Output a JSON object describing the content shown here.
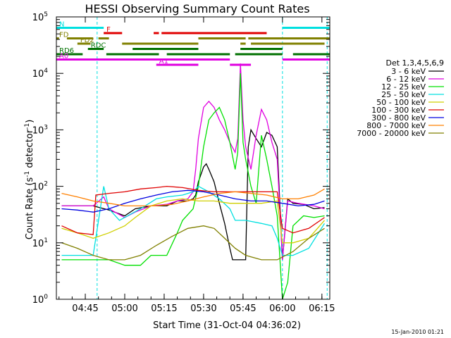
{
  "chart_data": {
    "type": "line",
    "title": "HESSI Observing Summary Count Rates",
    "xlabel": "Start Time (31-Oct-04 04:36:02)",
    "ylabel": "Count Rate (s⁻¹ detector⁻¹)",
    "ylabel_parts": [
      "Count Rate (s",
      "-1",
      " detector",
      "-1",
      ")"
    ],
    "xlim": [
      -2,
      102
    ],
    "ylim": [
      1,
      100000
    ],
    "yscale": "log",
    "x_unit": "minutes after 04:36:02",
    "x_ticks": [
      {
        "x": 9,
        "label": "04:45"
      },
      {
        "x": 24,
        "label": "05:00"
      },
      {
        "x": 39,
        "label": "05:15"
      },
      {
        "x": 54,
        "label": "05:30"
      },
      {
        "x": 69,
        "label": "05:45"
      },
      {
        "x": 84,
        "label": "06:00"
      },
      {
        "x": 99,
        "label": "06:15"
      }
    ],
    "y_ticks": [
      {
        "v": 1,
        "base": "10",
        "exp": "0"
      },
      {
        "v": 10,
        "base": "10",
        "exp": "1"
      },
      {
        "v": 100,
        "base": "10",
        "exp": "2"
      },
      {
        "v": 1000,
        "base": "10",
        "exp": "3"
      },
      {
        "v": 10000,
        "base": "10",
        "exp": "4"
      },
      {
        "v": 100000,
        "base": "10",
        "exp": "5"
      }
    ],
    "legend_title": "Det 1,3,4,5,6,9",
    "legend_position": "right",
    "series": [
      {
        "name": "3 - 6 keV",
        "color": "#000000",
        "points": [
          [
            0,
            45
          ],
          [
            12,
            45
          ],
          [
            18,
            38
          ],
          [
            24,
            30
          ],
          [
            28,
            40
          ],
          [
            34,
            45
          ],
          [
            40,
            45
          ],
          [
            44,
            55
          ],
          [
            48,
            55
          ],
          [
            50,
            60
          ],
          [
            51,
            70
          ],
          [
            52,
            120
          ],
          [
            54,
            220
          ],
          [
            55,
            250
          ],
          [
            56,
            200
          ],
          [
            58,
            120
          ],
          [
            60,
            50
          ],
          [
            62,
            22
          ],
          [
            64,
            8
          ],
          [
            65,
            5
          ],
          [
            70,
            5
          ],
          [
            71,
            500
          ],
          [
            72,
            1000
          ],
          [
            74,
            700
          ],
          [
            76,
            500
          ],
          [
            78,
            900
          ],
          [
            80,
            800
          ],
          [
            82,
            500
          ],
          [
            84,
            5
          ],
          [
            86,
            60
          ],
          [
            88,
            50
          ],
          [
            92,
            48
          ],
          [
            96,
            40
          ],
          [
            100,
            42
          ]
        ]
      },
      {
        "name": "6 - 12 keV",
        "color": "#e000e0",
        "points": [
          [
            0,
            45
          ],
          [
            12,
            45
          ],
          [
            16,
            65
          ],
          [
            18,
            40
          ],
          [
            24,
            28
          ],
          [
            28,
            35
          ],
          [
            34,
            45
          ],
          [
            40,
            48
          ],
          [
            44,
            55
          ],
          [
            48,
            60
          ],
          [
            50,
            80
          ],
          [
            51,
            200
          ],
          [
            52,
            700
          ],
          [
            54,
            2500
          ],
          [
            56,
            3200
          ],
          [
            58,
            2500
          ],
          [
            60,
            1500
          ],
          [
            62,
            1000
          ],
          [
            64,
            600
          ],
          [
            66,
            400
          ],
          [
            67,
            700
          ],
          [
            68,
            15000
          ],
          [
            69,
            1500
          ],
          [
            70,
            500
          ],
          [
            72,
            200
          ],
          [
            74,
            800
          ],
          [
            76,
            2300
          ],
          [
            78,
            1500
          ],
          [
            80,
            600
          ],
          [
            82,
            300
          ],
          [
            84,
            5
          ],
          [
            86,
            55
          ],
          [
            90,
            50
          ],
          [
            96,
            45
          ],
          [
            100,
            40
          ]
        ]
      },
      {
        "name": "12 - 25 keV",
        "color": "#00e000",
        "points": [
          [
            0,
            5
          ],
          [
            10,
            5
          ],
          [
            18,
            5
          ],
          [
            24,
            4
          ],
          [
            30,
            4
          ],
          [
            34,
            6
          ],
          [
            40,
            6
          ],
          [
            44,
            15
          ],
          [
            46,
            25
          ],
          [
            50,
            40
          ],
          [
            52,
            100
          ],
          [
            54,
            500
          ],
          [
            56,
            1500
          ],
          [
            58,
            2000
          ],
          [
            60,
            2500
          ],
          [
            62,
            1500
          ],
          [
            64,
            600
          ],
          [
            66,
            200
          ],
          [
            67,
            400
          ],
          [
            68,
            10000
          ],
          [
            69,
            600
          ],
          [
            70,
            300
          ],
          [
            72,
            100
          ],
          [
            74,
            50
          ],
          [
            76,
            800
          ],
          [
            78,
            300
          ],
          [
            80,
            100
          ],
          [
            82,
            30
          ],
          [
            84,
            1
          ],
          [
            86,
            2
          ],
          [
            88,
            20
          ],
          [
            92,
            30
          ],
          [
            96,
            28
          ],
          [
            100,
            30
          ]
        ]
      },
      {
        "name": "25 - 50 keV",
        "color": "#00e0e0",
        "points": [
          [
            0,
            6
          ],
          [
            12,
            6
          ],
          [
            16,
            100
          ],
          [
            18,
            40
          ],
          [
            22,
            25
          ],
          [
            30,
            40
          ],
          [
            36,
            60
          ],
          [
            40,
            65
          ],
          [
            46,
            70
          ],
          [
            50,
            80
          ],
          [
            52,
            100
          ],
          [
            56,
            80
          ],
          [
            60,
            60
          ],
          [
            64,
            40
          ],
          [
            66,
            25
          ],
          [
            70,
            25
          ],
          [
            76,
            22
          ],
          [
            80,
            20
          ],
          [
            82,
            12
          ],
          [
            84,
            6
          ],
          [
            88,
            6
          ],
          [
            94,
            8
          ],
          [
            100,
            22
          ]
        ]
      },
      {
        "name": "50 - 100 keV",
        "color": "#d0d000",
        "points": [
          [
            0,
            18
          ],
          [
            6,
            15
          ],
          [
            12,
            12
          ],
          [
            18,
            15
          ],
          [
            24,
            20
          ],
          [
            28,
            28
          ],
          [
            34,
            45
          ],
          [
            40,
            55
          ],
          [
            46,
            60
          ],
          [
            52,
            55
          ],
          [
            58,
            55
          ],
          [
            64,
            50
          ],
          [
            70,
            50
          ],
          [
            76,
            50
          ],
          [
            82,
            55
          ],
          [
            84,
            10
          ],
          [
            88,
            10
          ],
          [
            94,
            12
          ],
          [
            100,
            25
          ]
        ]
      },
      {
        "name": "100 - 300 keV",
        "color": "#e00000",
        "points": [
          [
            0,
            20
          ],
          [
            6,
            15
          ],
          [
            12,
            14
          ],
          [
            13,
            70
          ],
          [
            18,
            75
          ],
          [
            24,
            80
          ],
          [
            30,
            90
          ],
          [
            36,
            95
          ],
          [
            40,
            100
          ],
          [
            46,
            95
          ],
          [
            52,
            85
          ],
          [
            58,
            80
          ],
          [
            64,
            80
          ],
          [
            70,
            80
          ],
          [
            76,
            80
          ],
          [
            82,
            80
          ],
          [
            84,
            18
          ],
          [
            88,
            15
          ],
          [
            94,
            18
          ],
          [
            100,
            28
          ]
        ]
      },
      {
        "name": "300 - 800 keV",
        "color": "#0000e0",
        "points": [
          [
            0,
            40
          ],
          [
            6,
            38
          ],
          [
            12,
            35
          ],
          [
            18,
            40
          ],
          [
            24,
            50
          ],
          [
            30,
            60
          ],
          [
            36,
            70
          ],
          [
            42,
            80
          ],
          [
            48,
            85
          ],
          [
            54,
            80
          ],
          [
            60,
            70
          ],
          [
            66,
            60
          ],
          [
            72,
            55
          ],
          [
            78,
            55
          ],
          [
            84,
            50
          ],
          [
            90,
            45
          ],
          [
            96,
            48
          ],
          [
            100,
            55
          ]
        ]
      },
      {
        "name": "800 - 7000 keV",
        "color": "#ff8000",
        "points": [
          [
            0,
            75
          ],
          [
            6,
            65
          ],
          [
            12,
            55
          ],
          [
            18,
            50
          ],
          [
            24,
            45
          ],
          [
            30,
            45
          ],
          [
            36,
            45
          ],
          [
            42,
            48
          ],
          [
            48,
            55
          ],
          [
            54,
            65
          ],
          [
            60,
            75
          ],
          [
            66,
            80
          ],
          [
            72,
            75
          ],
          [
            78,
            70
          ],
          [
            84,
            60
          ],
          [
            90,
            60
          ],
          [
            96,
            70
          ],
          [
            100,
            90
          ]
        ]
      },
      {
        "name": "7000 - 20000 keV",
        "color": "#808000",
        "points": [
          [
            0,
            10
          ],
          [
            6,
            8
          ],
          [
            12,
            6
          ],
          [
            18,
            5
          ],
          [
            24,
            5
          ],
          [
            30,
            6
          ],
          [
            36,
            9
          ],
          [
            42,
            13
          ],
          [
            48,
            18
          ],
          [
            54,
            20
          ],
          [
            58,
            18
          ],
          [
            62,
            12
          ],
          [
            66,
            8
          ],
          [
            70,
            6
          ],
          [
            76,
            5
          ],
          [
            82,
            5
          ],
          [
            88,
            7
          ],
          [
            94,
            12
          ],
          [
            100,
            18
          ]
        ]
      }
    ],
    "flags": [
      {
        "label": "N",
        "color": "#00e0e0",
        "y_level": 1,
        "segments": [
          [
            -2,
            16
          ],
          [
            84,
            102
          ]
        ]
      },
      {
        "label": "F",
        "color": "#e00000",
        "y_level": 2,
        "segments": [
          [
            16,
            23
          ],
          [
            35,
            37
          ],
          [
            38,
            78
          ]
        ]
      },
      {
        "label": "FD",
        "color": "#808000",
        "y_level": 3,
        "segments": [
          [
            -2,
            -1
          ],
          [
            2,
            12
          ],
          [
            14,
            18
          ],
          [
            52,
            70
          ],
          [
            71,
            102
          ]
        ]
      },
      {
        "label": "FD2",
        "color": "#808000",
        "y_level": 4,
        "segments": [
          [
            6,
            11
          ],
          [
            23,
            52
          ],
          [
            68,
            70
          ],
          [
            72,
            100
          ]
        ]
      },
      {
        "label": "RDC",
        "color": "#007000",
        "y_level": 5,
        "segments": [
          [
            10,
            16
          ],
          [
            27,
            52
          ],
          [
            68,
            84
          ]
        ]
      },
      {
        "label": "RD6",
        "color": "#007000",
        "y_level": 6,
        "segments": [
          [
            -2,
            8
          ],
          [
            17,
            37
          ],
          [
            40,
            64
          ],
          [
            66,
            84
          ],
          [
            88,
            102
          ]
        ]
      },
      {
        "label": "A0",
        "color": "#e000e0",
        "y_level": 7,
        "segments": [
          [
            -2,
            64
          ],
          [
            84,
            102
          ]
        ]
      },
      {
        "label": "A1",
        "color": "#e000e0",
        "y_level": 8,
        "segments": [
          [
            36,
            52
          ],
          [
            64,
            72
          ]
        ]
      }
    ],
    "vertical_markers": [
      {
        "x": 13.5,
        "color": "#00e0e0"
      },
      {
        "x": 84,
        "color": "#00e0e0"
      },
      {
        "x": 101,
        "color": "#00e0e0"
      }
    ],
    "footer": "15-Jan-2010 01:21"
  }
}
